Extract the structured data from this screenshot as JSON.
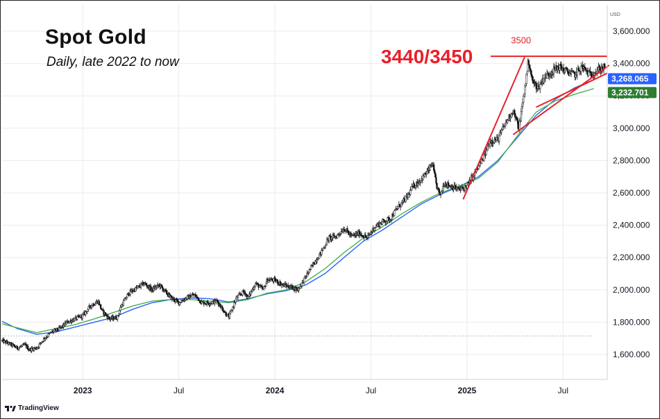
{
  "header": {
    "title": "Spot Gold",
    "subtitle": "Daily, late 2022 to now"
  },
  "branding": {
    "name": "TradingView",
    "logo_icon": "tradingview-logo-icon"
  },
  "annotations": {
    "resistance_label": "3440/3450",
    "peak_label": "3500"
  },
  "price_tags": {
    "blue": {
      "text": "3,268.065",
      "color": "#2962ff"
    },
    "green": {
      "text": "3,232.701",
      "color": "#2e7d32"
    }
  },
  "colors": {
    "candles": "#111111",
    "ma_blue": "#2962ff",
    "ma_green": "#4caf50",
    "annotation": "#e8202a",
    "gridline": "#ebebeb"
  },
  "chart_data": {
    "type": "candlestick",
    "title": "Spot Gold",
    "subtitle": "Daily, late 2022 to now",
    "currency": "USD",
    "ylim": [
      1520,
      3720
    ],
    "y_ticks": [
      "1,600.000",
      "1,800.000",
      "2,000.000",
      "2,200.000",
      "2,400.000",
      "2,600.000",
      "2,800.000",
      "3,000.000",
      "3,200.000",
      "3,400.000",
      "3,600.000"
    ],
    "y_tick_values": [
      1600,
      1800,
      2000,
      2200,
      2400,
      2600,
      2800,
      3000,
      3200,
      3400,
      3600
    ],
    "x_range": [
      2022.58,
      2025.73
    ],
    "x_ticks": [
      {
        "label": "2023",
        "t": 2023.0,
        "bold": true
      },
      {
        "label": "Jul",
        "t": 2023.5,
        "bold": false
      },
      {
        "label": "2024",
        "t": 2024.0,
        "bold": true
      },
      {
        "label": "Jul",
        "t": 2024.5,
        "bold": false
      },
      {
        "label": "2025",
        "t": 2025.0,
        "bold": true
      },
      {
        "label": "Jul",
        "t": 2025.5,
        "bold": false
      }
    ],
    "price_path": [
      [
        2022.58,
        1685
      ],
      [
        2022.62,
        1665
      ],
      [
        2022.66,
        1640
      ],
      [
        2022.7,
        1660
      ],
      [
        2022.72,
        1630
      ],
      [
        2022.76,
        1640
      ],
      [
        2022.8,
        1700
      ],
      [
        2022.84,
        1740
      ],
      [
        2022.88,
        1760
      ],
      [
        2022.92,
        1800
      ],
      [
        2022.96,
        1820
      ],
      [
        2023.0,
        1840
      ],
      [
        2023.04,
        1900
      ],
      [
        2023.08,
        1930
      ],
      [
        2023.1,
        1870
      ],
      [
        2023.14,
        1820
      ],
      [
        2023.18,
        1830
      ],
      [
        2023.2,
        1900
      ],
      [
        2023.24,
        1980
      ],
      [
        2023.28,
        2010
      ],
      [
        2023.32,
        2040
      ],
      [
        2023.36,
        2000
      ],
      [
        2023.4,
        2030
      ],
      [
        2023.42,
        2000
      ],
      [
        2023.46,
        1950
      ],
      [
        2023.5,
        1920
      ],
      [
        2023.54,
        1950
      ],
      [
        2023.58,
        1970
      ],
      [
        2023.62,
        1920
      ],
      [
        2023.66,
        1920
      ],
      [
        2023.7,
        1930
      ],
      [
        2023.74,
        1860
      ],
      [
        2023.76,
        1830
      ],
      [
        2023.8,
        1950
      ],
      [
        2023.84,
        1990
      ],
      [
        2023.86,
        1950
      ],
      [
        2023.9,
        2040
      ],
      [
        2023.94,
        2000
      ],
      [
        2023.96,
        2060
      ],
      [
        2024.0,
        2060
      ],
      [
        2024.04,
        2030
      ],
      [
        2024.08,
        2020
      ],
      [
        2024.12,
        2000
      ],
      [
        2024.16,
        2080
      ],
      [
        2024.2,
        2160
      ],
      [
        2024.24,
        2230
      ],
      [
        2024.28,
        2320
      ],
      [
        2024.32,
        2330
      ],
      [
        2024.36,
        2380
      ],
      [
        2024.4,
        2330
      ],
      [
        2024.44,
        2350
      ],
      [
        2024.48,
        2320
      ],
      [
        2024.52,
        2390
      ],
      [
        2024.56,
        2420
      ],
      [
        2024.6,
        2440
      ],
      [
        2024.64,
        2510
      ],
      [
        2024.68,
        2560
      ],
      [
        2024.72,
        2640
      ],
      [
        2024.76,
        2680
      ],
      [
        2024.8,
        2740
      ],
      [
        2024.82,
        2780
      ],
      [
        2024.84,
        2650
      ],
      [
        2024.86,
        2580
      ],
      [
        2024.88,
        2660
      ],
      [
        2024.92,
        2640
      ],
      [
        2024.96,
        2620
      ],
      [
        2025.0,
        2640
      ],
      [
        2025.04,
        2720
      ],
      [
        2025.08,
        2800
      ],
      [
        2025.12,
        2920
      ],
      [
        2025.16,
        2930
      ],
      [
        2025.2,
        3030
      ],
      [
        2025.24,
        3110
      ],
      [
        2025.27,
        3000
      ],
      [
        2025.3,
        3240
      ],
      [
        2025.32,
        3420
      ],
      [
        2025.34,
        3290
      ],
      [
        2025.37,
        3250
      ],
      [
        2025.4,
        3310
      ],
      [
        2025.44,
        3350
      ],
      [
        2025.48,
        3380
      ],
      [
        2025.52,
        3350
      ],
      [
        2025.56,
        3330
      ],
      [
        2025.6,
        3380
      ],
      [
        2025.64,
        3330
      ],
      [
        2025.68,
        3360
      ],
      [
        2025.72,
        3380
      ]
    ],
    "series": [
      {
        "name": "moving-average-blue",
        "color": "#2962ff",
        "values": [
          [
            2022.58,
            1805
          ],
          [
            2022.66,
            1760
          ],
          [
            2022.76,
            1725
          ],
          [
            2022.86,
            1740
          ],
          [
            2022.96,
            1770
          ],
          [
            2023.06,
            1800
          ],
          [
            2023.16,
            1830
          ],
          [
            2023.26,
            1880
          ],
          [
            2023.36,
            1920
          ],
          [
            2023.46,
            1940
          ],
          [
            2023.56,
            1950
          ],
          [
            2023.66,
            1945
          ],
          [
            2023.76,
            1925
          ],
          [
            2023.86,
            1945
          ],
          [
            2023.96,
            1975
          ],
          [
            2024.06,
            1995
          ],
          [
            2024.16,
            2030
          ],
          [
            2024.26,
            2100
          ],
          [
            2024.36,
            2200
          ],
          [
            2024.46,
            2300
          ],
          [
            2024.56,
            2370
          ],
          [
            2024.66,
            2450
          ],
          [
            2024.76,
            2530
          ],
          [
            2024.86,
            2590
          ],
          [
            2024.96,
            2640
          ],
          [
            2025.06,
            2700
          ],
          [
            2025.16,
            2800
          ],
          [
            2025.26,
            2940
          ],
          [
            2025.36,
            3080
          ],
          [
            2025.46,
            3180
          ],
          [
            2025.56,
            3250
          ],
          [
            2025.66,
            3300
          ]
        ]
      },
      {
        "name": "moving-average-green",
        "color": "#4caf50",
        "values": [
          [
            2022.58,
            1790
          ],
          [
            2022.66,
            1765
          ],
          [
            2022.76,
            1735
          ],
          [
            2022.86,
            1760
          ],
          [
            2022.96,
            1785
          ],
          [
            2023.06,
            1820
          ],
          [
            2023.16,
            1860
          ],
          [
            2023.26,
            1900
          ],
          [
            2023.36,
            1930
          ],
          [
            2023.46,
            1940
          ],
          [
            2023.56,
            1940
          ],
          [
            2023.66,
            1930
          ],
          [
            2023.76,
            1920
          ],
          [
            2023.86,
            1940
          ],
          [
            2023.96,
            1980
          ],
          [
            2024.06,
            2000
          ],
          [
            2024.16,
            2050
          ],
          [
            2024.26,
            2130
          ],
          [
            2024.36,
            2230
          ],
          [
            2024.46,
            2320
          ],
          [
            2024.56,
            2390
          ],
          [
            2024.66,
            2470
          ],
          [
            2024.76,
            2540
          ],
          [
            2024.86,
            2600
          ],
          [
            2024.96,
            2640
          ],
          [
            2025.06,
            2690
          ],
          [
            2025.16,
            2790
          ],
          [
            2025.26,
            2950
          ],
          [
            2025.36,
            3100
          ],
          [
            2025.46,
            3170
          ],
          [
            2025.56,
            3210
          ],
          [
            2025.66,
            3245
          ]
        ]
      }
    ],
    "reference_lines": [
      {
        "name": "resistance-line",
        "type": "horizontal",
        "value": 3445,
        "from_t": 2025.27,
        "to_t": 2025.73
      },
      {
        "name": "dotted-baseline",
        "type": "horizontal-dotted",
        "value": 1715,
        "from_t": 2022.58,
        "to_t": 2025.66
      }
    ],
    "trendlines": [
      {
        "name": "steep-uptrend-line",
        "points": [
          [
            2024.98,
            2560
          ],
          [
            2025.3,
            3440
          ]
        ]
      },
      {
        "name": "triangle-upper-line",
        "points": [
          [
            2025.36,
            3130
          ],
          [
            2025.73,
            3340
          ]
        ]
      },
      {
        "name": "triangle-lower-line",
        "points": [
          [
            2025.24,
            2960
          ],
          [
            2025.74,
            3390
          ]
        ]
      }
    ],
    "annotations": [
      {
        "text": "3440/3450",
        "value": 3445
      },
      {
        "text": "3500",
        "value": 3500,
        "t": 2025.31
      }
    ],
    "last_values": {
      "blue": 3268.065,
      "green": 3232.701
    }
  }
}
